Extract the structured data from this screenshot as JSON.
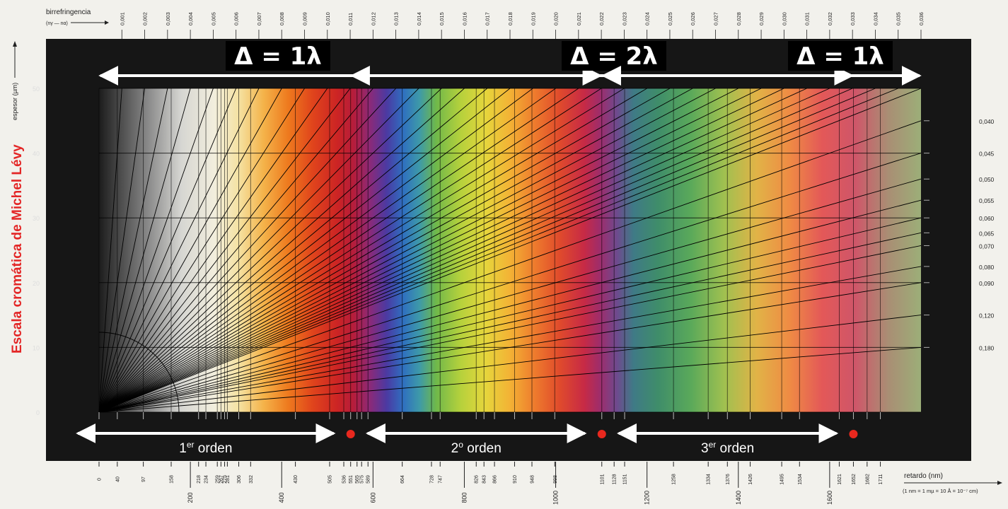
{
  "chart_data": {
    "type": "area",
    "side_title": "Escala cromática de Michel Lévy",
    "birefringence": {
      "label": "birrefringencia",
      "formula": "(nγ — nα)",
      "ticks": [
        "0,001",
        "0,002",
        "0,003",
        "0,004",
        "0,005",
        "0,006",
        "0,007",
        "0,008",
        "0,009",
        "0,010",
        "0,011",
        "0,012",
        "0,013",
        "0,014",
        "0,015",
        "0,016",
        "0,017",
        "0,018",
        "0,019",
        "0,020",
        "0,021",
        "0,022",
        "0,023",
        "0,024",
        "0,025",
        "0,026",
        "0,027",
        "0,028",
        "0,029",
        "0,030",
        "0,031",
        "0,032",
        "0,033",
        "0,034",
        "0,035",
        "0,036"
      ],
      "right_ticks": [
        "0,040",
        "0,045",
        "0,050",
        "0,055",
        "0,060",
        "0,065",
        "0,070",
        "0,080",
        "0,090",
        "0,120",
        "0,180"
      ]
    },
    "thickness": {
      "label": "espesor (µm)",
      "range": [
        0,
        50
      ],
      "ticks": [
        "0",
        "10",
        "20",
        "30",
        "40",
        "50"
      ]
    },
    "retardation": {
      "label": "retardo (nm)",
      "unit_note": "(1 nm = 1 mµ = 10 Å = 10⁻⁷ cm)",
      "range": [
        0,
        1800
      ],
      "major_ticks": [
        "200",
        "400",
        "600",
        "800",
        "1000",
        "1200",
        "1400",
        "1600"
      ],
      "color_ticks": [
        "0",
        "40",
        "97",
        "158",
        "218",
        "234",
        "259",
        "267",
        "275",
        "281",
        "306",
        "332",
        "430",
        "505",
        "536",
        "551",
        "565",
        "575",
        "589",
        "664",
        "728",
        "747",
        "826",
        "843",
        "866",
        "910",
        "948",
        "998",
        "1101",
        "1128",
        "1151",
        "1258",
        "1334",
        "1376",
        "1426",
        "1495",
        "1534",
        "1621",
        "1652",
        "1682",
        "1711"
      ]
    },
    "deltas": [
      {
        "text": "Δ = 1λ",
        "from": 0,
        "to": 1101
      },
      {
        "text": "Δ = 2λ",
        "from": 551,
        "to": 1652
      },
      {
        "text": "Δ = 1λ",
        "from": 1101,
        "to": 1800
      }
    ],
    "orders": [
      {
        "label": "1",
        "sup": "er",
        "suffix": " orden",
        "from": 0,
        "to": 551
      },
      {
        "label": "2",
        "sup": "o",
        "suffix": " orden",
        "from": 551,
        "to": 1101
      },
      {
        "label": "3",
        "sup": "er",
        "suffix": " orden",
        "from": 1101,
        "to": 1652
      }
    ],
    "order_marks": [
      551,
      1101,
      1652
    ],
    "colors": {
      "red_mark": "#e8281e",
      "title_red": "#e32626",
      "panel": "#161616"
    }
  }
}
